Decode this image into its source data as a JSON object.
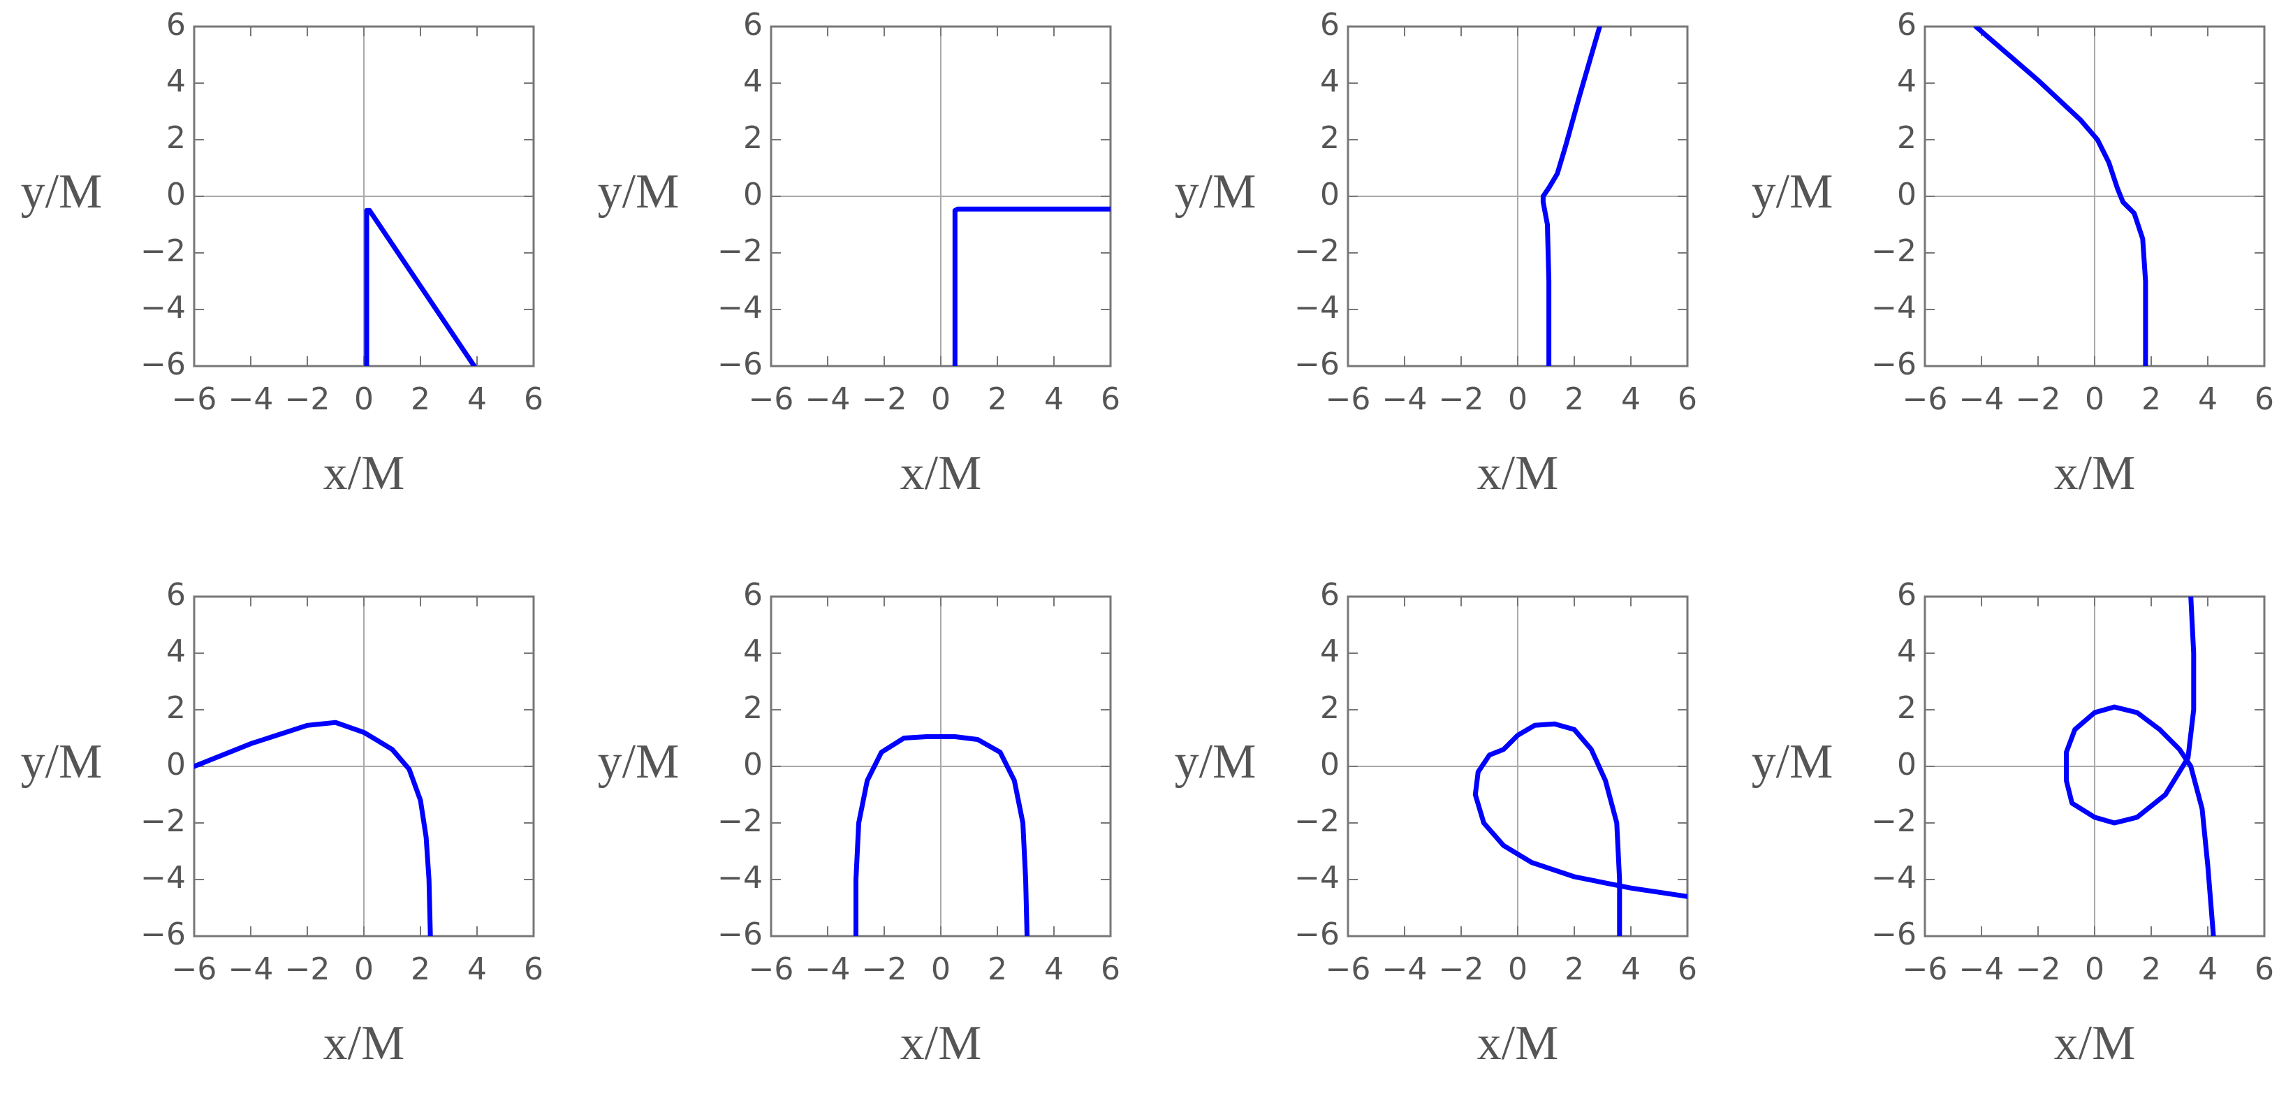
{
  "chart_data": [
    {
      "type": "line",
      "xlabel": "x/M",
      "ylabel": "y/M",
      "color": "#0000ff",
      "zero_lines": true,
      "xlim": [
        -6,
        6
      ],
      "ylim": [
        -6,
        6
      ],
      "xticks": [
        {
          "value": -6,
          "label": "−6"
        },
        {
          "value": -4,
          "label": "−4"
        },
        {
          "value": -2,
          "label": "−2"
        },
        0,
        2,
        4,
        6
      ],
      "yticks": [
        {
          "value": -6,
          "label": "−6"
        },
        {
          "value": -4,
          "label": "−4"
        },
        {
          "value": -2,
          "label": "−2"
        },
        0,
        2,
        4,
        6
      ],
      "x": [
        0.1,
        0.1,
        0.2,
        3.9
      ],
      "values": [
        -6,
        -0.5,
        -0.5,
        -6
      ]
    },
    {
      "type": "line",
      "xlabel": "x/M",
      "ylabel": "y/M",
      "color": "#0000ff",
      "zero_lines": true,
      "xlim": [
        -6,
        6
      ],
      "ylim": [
        -6,
        6
      ],
      "xticks": [
        {
          "value": -6,
          "label": "−6"
        },
        {
          "value": -4,
          "label": "−4"
        },
        {
          "value": -2,
          "label": "−2"
        },
        0,
        2,
        4,
        6
      ],
      "yticks": [
        {
          "value": -6,
          "label": "−6"
        },
        {
          "value": -4,
          "label": "−4"
        },
        {
          "value": -2,
          "label": "−2"
        },
        0,
        2,
        4,
        6
      ],
      "x": [
        0.5,
        0.5,
        0.6,
        6
      ],
      "values": [
        -6,
        -0.5,
        -0.45,
        -0.45
      ]
    },
    {
      "type": "line",
      "xlabel": "x/M",
      "ylabel": "y/M",
      "color": "#0000ff",
      "zero_lines": true,
      "xlim": [
        -6,
        6
      ],
      "ylim": [
        -6,
        6
      ],
      "xticks": [
        {
          "value": -6,
          "label": "−6"
        },
        {
          "value": -4,
          "label": "−4"
        },
        {
          "value": -2,
          "label": "−2"
        },
        0,
        2,
        4,
        6
      ],
      "yticks": [
        {
          "value": -6,
          "label": "−6"
        },
        {
          "value": -4,
          "label": "−4"
        },
        {
          "value": -2,
          "label": "−2"
        },
        0,
        2,
        4,
        6
      ],
      "x": [
        1.1,
        1.1,
        1.05,
        0.9,
        0.9,
        1.1,
        1.4,
        1.7,
        2.2,
        2.9
      ],
      "values": [
        -6,
        -3,
        -1,
        -0.2,
        0,
        0.3,
        0.8,
        1.8,
        3.6,
        6
      ]
    },
    {
      "type": "line",
      "xlabel": "x/M",
      "ylabel": "y/M",
      "color": "#0000ff",
      "zero_lines": true,
      "xlim": [
        -6,
        6
      ],
      "ylim": [
        -6,
        6
      ],
      "xticks": [
        {
          "value": -6,
          "label": "−6"
        },
        {
          "value": -4,
          "label": "−4"
        },
        {
          "value": -2,
          "label": "−2"
        },
        0,
        2,
        4,
        6
      ],
      "yticks": [
        {
          "value": -6,
          "label": "−6"
        },
        {
          "value": -4,
          "label": "−4"
        },
        {
          "value": -2,
          "label": "−2"
        },
        0,
        2,
        4,
        6
      ],
      "x": [
        1.8,
        1.8,
        1.7,
        1.4,
        1.0,
        0.8,
        0.5,
        0.1,
        -0.5,
        -2,
        -4.2
      ],
      "values": [
        -6,
        -3,
        -1.5,
        -0.6,
        -0.2,
        0.3,
        1.2,
        2.0,
        2.7,
        4.1,
        6
      ]
    },
    {
      "type": "line",
      "xlabel": "x/M",
      "ylabel": "y/M",
      "color": "#0000ff",
      "zero_lines": true,
      "xlim": [
        -6,
        6
      ],
      "ylim": [
        -6,
        6
      ],
      "xticks": [
        {
          "value": -6,
          "label": "−6"
        },
        {
          "value": -4,
          "label": "−4"
        },
        {
          "value": -2,
          "label": "−2"
        },
        0,
        2,
        4,
        6
      ],
      "yticks": [
        {
          "value": -6,
          "label": "−6"
        },
        {
          "value": -4,
          "label": "−4"
        },
        {
          "value": -2,
          "label": "−2"
        },
        0,
        2,
        4,
        6
      ],
      "x": [
        -6,
        -4,
        -2,
        -1,
        0,
        0.5,
        1,
        1.6,
        2.0,
        2.2,
        2.3,
        2.35
      ],
      "values": [
        0,
        0.8,
        1.45,
        1.55,
        1.2,
        0.9,
        0.6,
        -0.1,
        -1.2,
        -2.5,
        -4,
        -6
      ]
    },
    {
      "type": "line",
      "xlabel": "x/M",
      "ylabel": "y/M",
      "color": "#0000ff",
      "zero_lines": true,
      "xlim": [
        -6,
        6
      ],
      "ylim": [
        -6,
        6
      ],
      "xticks": [
        {
          "value": -6,
          "label": "−6"
        },
        {
          "value": -4,
          "label": "−4"
        },
        {
          "value": -2,
          "label": "−2"
        },
        0,
        2,
        4,
        6
      ],
      "yticks": [
        {
          "value": -6,
          "label": "−6"
        },
        {
          "value": -4,
          "label": "−4"
        },
        {
          "value": -2,
          "label": "−2"
        },
        0,
        2,
        4,
        6
      ],
      "x": [
        -3,
        -3,
        -2.9,
        -2.6,
        -2.1,
        -1.3,
        -0.5,
        0,
        0.5,
        1.3,
        2.1,
        2.6,
        2.9,
        3,
        3.05
      ],
      "values": [
        -6,
        -4,
        -2,
        -0.5,
        0.5,
        1.0,
        1.05,
        1.05,
        1.05,
        0.95,
        0.5,
        -0.5,
        -2,
        -4,
        -6
      ]
    },
    {
      "type": "line",
      "xlabel": "x/M",
      "ylabel": "y/M",
      "color": "#0000ff",
      "zero_lines": true,
      "xlim": [
        -6,
        6
      ],
      "ylim": [
        -6,
        6
      ],
      "xticks": [
        {
          "value": -6,
          "label": "−6"
        },
        {
          "value": -4,
          "label": "−4"
        },
        {
          "value": -2,
          "label": "−2"
        },
        0,
        2,
        4,
        6
      ],
      "yticks": [
        {
          "value": -6,
          "label": "−6"
        },
        {
          "value": -4,
          "label": "−4"
        },
        {
          "value": -2,
          "label": "−2"
        },
        0,
        2,
        4,
        6
      ],
      "x": [
        3.6,
        3.6,
        3.5,
        3.1,
        2.6,
        2,
        1.3,
        0.6,
        0,
        -0.5,
        -1.0,
        -1.4,
        -1.5,
        -1.2,
        -0.5,
        0.5,
        2,
        4,
        6
      ],
      "values": [
        -6,
        -4,
        -2,
        -0.5,
        0.6,
        1.3,
        1.5,
        1.45,
        1.1,
        0.6,
        0.4,
        -0.2,
        -1,
        -2,
        -2.8,
        -3.4,
        -3.9,
        -4.3,
        -4.6
      ]
    },
    {
      "type": "line",
      "xlabel": "x/M",
      "ylabel": "y/M",
      "color": "#0000ff",
      "zero_lines": true,
      "xlim": [
        -6,
        6
      ],
      "ylim": [
        -6,
        6
      ],
      "xticks": [
        {
          "value": -6,
          "label": "−6"
        },
        {
          "value": -4,
          "label": "−4"
        },
        {
          "value": -2,
          "label": "−2"
        },
        0,
        2,
        4,
        6
      ],
      "yticks": [
        {
          "value": -6,
          "label": "−6"
        },
        {
          "value": -4,
          "label": "−4"
        },
        {
          "value": -2,
          "label": "−2"
        },
        0,
        2,
        4,
        6
      ],
      "x": [
        3.4,
        3.5,
        3.5,
        3.3,
        2.5,
        1.5,
        0.7,
        0,
        -0.8,
        -1.0,
        -1.0,
        -0.7,
        0,
        0.7,
        1.5,
        2.3,
        3.0,
        3.4,
        3.8,
        4.0,
        4.2
      ],
      "values": [
        6,
        4,
        2,
        0.3,
        -1.0,
        -1.8,
        -2.0,
        -1.8,
        -1.3,
        -0.5,
        0.5,
        1.3,
        1.9,
        2.1,
        1.9,
        1.3,
        0.6,
        0,
        -1.5,
        -3.5,
        -6
      ]
    }
  ]
}
